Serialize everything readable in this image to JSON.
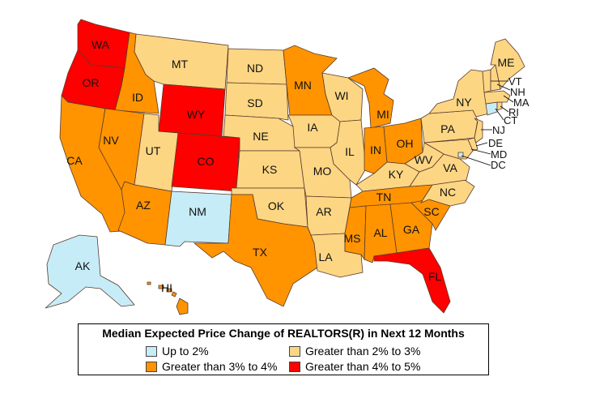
{
  "legend": {
    "title": "Median Expected Price Change of REALTORS(R) in Next 12 Months",
    "items": [
      {
        "label": "Up to 2%",
        "color": "#c6ecf8"
      },
      {
        "label": "Greater than 2% to 3%",
        "color": "#fdd684"
      },
      {
        "label": "Greater than 3% to 4%",
        "color": "#ff9400"
      },
      {
        "label": "Greater than 4% to 5%",
        "color": "#ff0000"
      }
    ]
  },
  "states": {
    "WA": {
      "label": "WA",
      "category": 3
    },
    "OR": {
      "label": "OR",
      "category": 3
    },
    "CA": {
      "label": "CA",
      "category": 2
    },
    "ID": {
      "label": "ID",
      "category": 2
    },
    "NV": {
      "label": "NV",
      "category": 2
    },
    "MT": {
      "label": "MT",
      "category": 1
    },
    "WY": {
      "label": "WY",
      "category": 3
    },
    "UT": {
      "label": "UT",
      "category": 1
    },
    "CO": {
      "label": "CO",
      "category": 3
    },
    "AZ": {
      "label": "AZ",
      "category": 2
    },
    "NM": {
      "label": "NM",
      "category": 0
    },
    "ND": {
      "label": "ND",
      "category": 1
    },
    "SD": {
      "label": "SD",
      "category": 1
    },
    "NE": {
      "label": "NE",
      "category": 1
    },
    "KS": {
      "label": "KS",
      "category": 1
    },
    "OK": {
      "label": "OK",
      "category": 1
    },
    "TX": {
      "label": "TX",
      "category": 2
    },
    "MN": {
      "label": "MN",
      "category": 2
    },
    "IA": {
      "label": "IA",
      "category": 1
    },
    "MO": {
      "label": "MO",
      "category": 1
    },
    "AR": {
      "label": "AR",
      "category": 1
    },
    "LA": {
      "label": "LA",
      "category": 1
    },
    "WI": {
      "label": "WI",
      "category": 1
    },
    "IL": {
      "label": "IL",
      "category": 1
    },
    "MI": {
      "label": "MI",
      "category": 2
    },
    "IN": {
      "label": "IN",
      "category": 2
    },
    "OH": {
      "label": "OH",
      "category": 2
    },
    "KY": {
      "label": "KY",
      "category": 1
    },
    "TN": {
      "label": "TN",
      "category": 2
    },
    "MS": {
      "label": "MS",
      "category": 2
    },
    "AL": {
      "label": "AL",
      "category": 2
    },
    "GA": {
      "label": "GA",
      "category": 2
    },
    "FL": {
      "label": "FL",
      "category": 3
    },
    "SC": {
      "label": "SC",
      "category": 2
    },
    "NC": {
      "label": "NC",
      "category": 1
    },
    "VA": {
      "label": "VA",
      "category": 1
    },
    "WV": {
      "label": "WV",
      "category": 1
    },
    "PA": {
      "label": "PA",
      "category": 1
    },
    "NY": {
      "label": "NY",
      "category": 1
    },
    "ME": {
      "label": "ME",
      "category": 1
    },
    "VT": {
      "label": "VT",
      "category": 1
    },
    "NH": {
      "label": "NH",
      "category": 1
    },
    "MA": {
      "label": "MA",
      "category": 1
    },
    "RI": {
      "label": "RI",
      "category": 1
    },
    "CT": {
      "label": "CT",
      "category": 0
    },
    "NJ": {
      "label": "NJ",
      "category": 1
    },
    "DE": {
      "label": "DE",
      "category": 1
    },
    "MD": {
      "label": "MD",
      "category": 1
    },
    "DC": {
      "label": "DC",
      "category": 0
    },
    "AK": {
      "label": "AK",
      "category": 0
    },
    "HI": {
      "label": "HI",
      "category": 2
    }
  }
}
